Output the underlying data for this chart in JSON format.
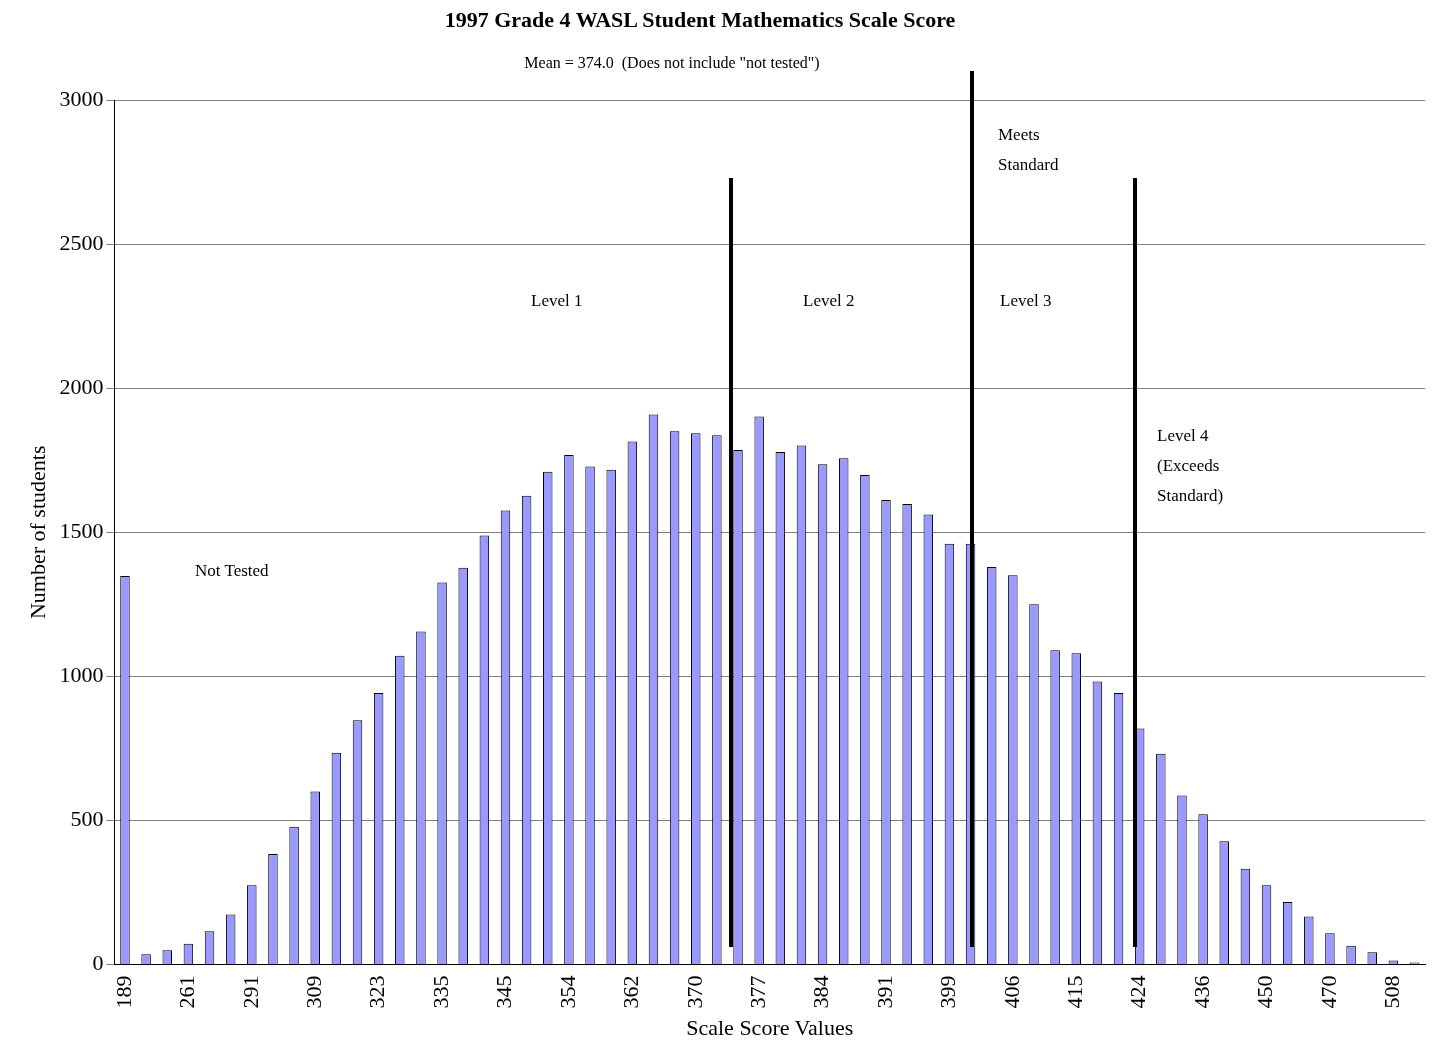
{
  "chart_data": {
    "type": "bar",
    "title": "1997 Grade 4 WASL Student Mathematics Scale Score",
    "subtitle": "Mean = 374.0  (Does not include \"not tested\")",
    "xlabel": "Scale Score Values",
    "ylabel": "Number of students",
    "categories": [
      "189",
      null,
      null,
      "261",
      null,
      null,
      "291",
      null,
      null,
      "309",
      null,
      null,
      "323",
      null,
      null,
      "335",
      null,
      null,
      "345",
      null,
      null,
      "354",
      null,
      null,
      "362",
      null,
      null,
      "370",
      null,
      null,
      "377",
      null,
      null,
      "384",
      null,
      null,
      "391",
      null,
      null,
      "399",
      null,
      null,
      "406",
      null,
      null,
      "415",
      null,
      null,
      "424",
      null,
      null,
      "436",
      null,
      null,
      "450",
      null,
      null,
      "470",
      null,
      null,
      "508",
      null
    ],
    "values": [
      1348,
      36,
      50,
      72,
      116,
      174,
      275,
      384,
      478,
      601,
      735,
      848,
      942,
      1072,
      1156,
      1326,
      1377,
      1489,
      1576,
      1627,
      1710,
      1768,
      1728,
      1717,
      1815,
      1909,
      1851,
      1844,
      1837,
      1786,
      1902,
      1779,
      1801,
      1736,
      1757,
      1699,
      1612,
      1598,
      1562,
      1460,
      1460,
      1380,
      1351,
      1250,
      1091,
      1080,
      982,
      942,
      819,
      732,
      587,
      522,
      428,
      333,
      275,
      217,
      167,
      109,
      65,
      43,
      14,
      7
    ],
    "color": "#9999ff",
    "ylim": [
      0,
      3000
    ],
    "yticks": [
      0,
      500,
      1000,
      1500,
      2000,
      2500,
      3000
    ],
    "grid": "y",
    "legend": false,
    "annotations": [
      "Not Tested",
      "Level 1",
      "Level 2",
      "Level 3",
      "Meets Standard",
      "Level 4 (Exceeds Standard)"
    ]
  }
}
